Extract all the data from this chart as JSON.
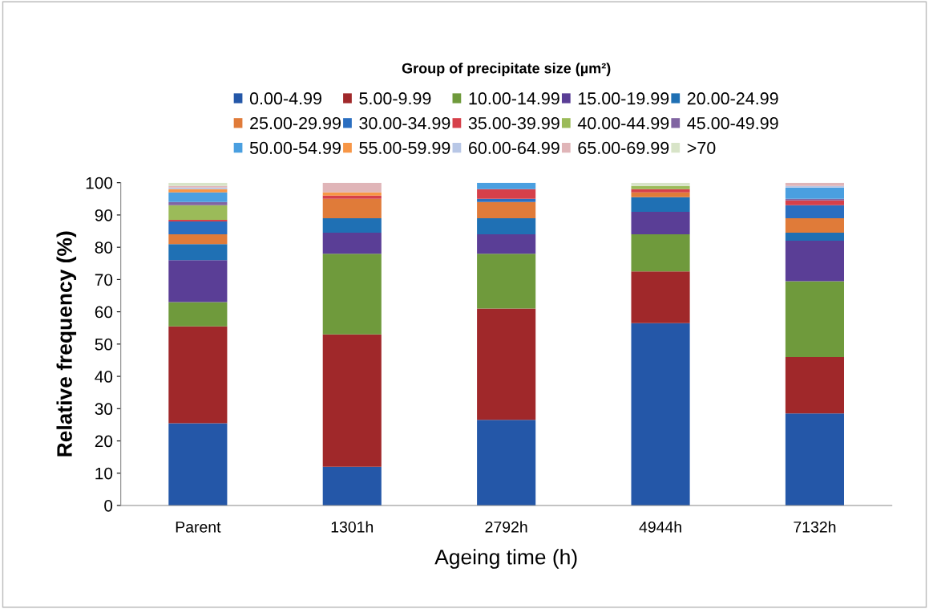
{
  "chart_data": {
    "type": "bar",
    "stacked": true,
    "xlabel": "Ageing time (h)",
    "ylabel": "Relative frequency (%)",
    "legend_title": "Group of precipitate size (µm²)",
    "legend": "top",
    "grid": false,
    "categories": [
      "Parent",
      "1301h",
      "2792h",
      "4944h",
      "7132h"
    ],
    "ylim": [
      0,
      100
    ],
    "yticks": [
      0,
      10,
      20,
      30,
      40,
      50,
      60,
      70,
      80,
      90,
      100
    ],
    "series": [
      {
        "name": "0.00-4.99",
        "color": "#2457a8",
        "values": [
          25.5,
          12,
          26.5,
          56.5,
          28.5
        ]
      },
      {
        "name": "5.00-9.99",
        "color": "#a0282a",
        "values": [
          30,
          41,
          34.5,
          16,
          17.5
        ]
      },
      {
        "name": "10.00-14.99",
        "color": "#6f9a3c",
        "values": [
          7.5,
          25,
          17,
          11.5,
          23.5
        ]
      },
      {
        "name": "15.00-19.99",
        "color": "#5a3e96",
        "values": [
          13,
          6.5,
          6,
          7,
          12.5
        ]
      },
      {
        "name": "20.00-24.99",
        "color": "#1f70b4",
        "values": [
          5,
          4.5,
          5,
          4.5,
          2.5
        ]
      },
      {
        "name": "25.00-29.99",
        "color": "#e07b39",
        "values": [
          3,
          6,
          5,
          1.5,
          4.5
        ]
      },
      {
        "name": "30.00-34.99",
        "color": "#2a6ec0",
        "values": [
          4,
          0,
          1,
          0,
          4
        ]
      },
      {
        "name": "35.00-39.99",
        "color": "#d6404a",
        "values": [
          0.5,
          1,
          3,
          1,
          1.5
        ]
      },
      {
        "name": "40.00-44.99",
        "color": "#9bbb59",
        "values": [
          4.5,
          0,
          0,
          1,
          0
        ]
      },
      {
        "name": "45.00-49.99",
        "color": "#8064a2",
        "values": [
          1,
          0,
          0,
          0,
          0.5
        ]
      },
      {
        "name": "50.00-54.99",
        "color": "#4a9fe0",
        "values": [
          3,
          0,
          2,
          0,
          3.5
        ]
      },
      {
        "name": "55.00-59.99",
        "color": "#f79646",
        "values": [
          1,
          1,
          0,
          0,
          0
        ]
      },
      {
        "name": "60.00-64.99",
        "color": "#b8c7e6",
        "values": [
          0.5,
          0,
          0,
          0,
          0.5
        ]
      },
      {
        "name": "65.00-69.99",
        "color": "#e0b5b8",
        "values": [
          0.5,
          3,
          0,
          0,
          1
        ]
      },
      {
        "name": ">70",
        "color": "#d8e4c8",
        "values": [
          1,
          0,
          0,
          1,
          0
        ]
      }
    ]
  }
}
